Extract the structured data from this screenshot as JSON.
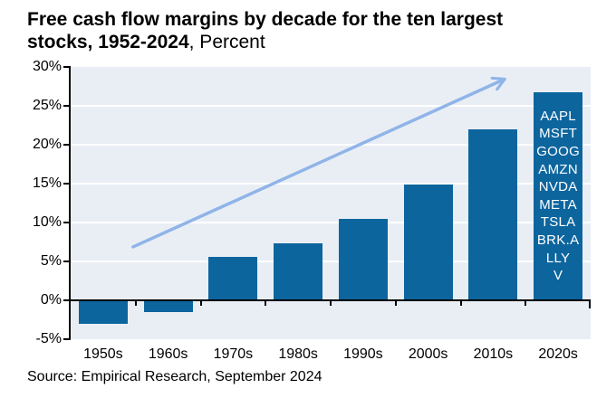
{
  "title": {
    "line1": "Free cash flow margins by decade for the ten largest",
    "line2_bold": "stocks, 1952-2024",
    "line2_suffix": ", Percent"
  },
  "source": "Source: Empirical Research, September 2024",
  "colors": {
    "bar": "#0d659e",
    "plot_background": "#e9eef5",
    "gridline": "#ffffff",
    "axis": "#000000",
    "arrow": "#8fb4e8",
    "ticker_text": "#ffffff"
  },
  "chart_data": {
    "type": "bar",
    "title": "Free cash flow margins by decade for the ten largest stocks, 1952-2024",
    "unit_label": "Percent",
    "categories": [
      "1950s",
      "1960s",
      "1970s",
      "1980s",
      "1990s",
      "2000s",
      "2010s",
      "2020s"
    ],
    "values": [
      -3.0,
      -1.5,
      5.6,
      7.3,
      10.5,
      14.9,
      22.0,
      26.8
    ],
    "ylim": [
      -5,
      30
    ],
    "yticks": [
      30,
      25,
      20,
      15,
      10,
      5,
      0,
      -5
    ],
    "ytick_labels": [
      "30%",
      "25%",
      "20%",
      "15%",
      "10%",
      "5%",
      "0%",
      "-5%"
    ],
    "grid": true,
    "annotations": {
      "top_bar_tickers": [
        "AAPL",
        "MSFT",
        "GOOG",
        "AMZN",
        "NVDA",
        "META",
        "TSLA",
        "BRK.A",
        "LLY",
        "V"
      ],
      "trend_arrow": {
        "from_frac": [
          0.12,
          0.661
        ],
        "to_frac": [
          0.832,
          0.047
        ]
      }
    }
  }
}
